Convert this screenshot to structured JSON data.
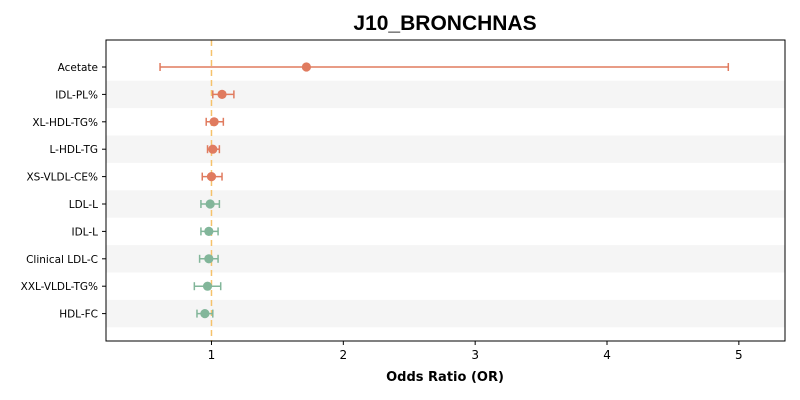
{
  "chart_data": {
    "type": "forest",
    "title": "J10_BRONCHNAS",
    "xlabel": "Odds Ratio (OR)",
    "xlim": [
      0.2,
      5.35
    ],
    "xticks": [
      1,
      2,
      3,
      4,
      5
    ],
    "reference_line": 1,
    "grid": false,
    "colors": {
      "positive": "#E07B5F",
      "negative": "#82B69A",
      "reference": "#F5C26B",
      "band": "#F5F5F5"
    },
    "rows": [
      {
        "label": "Acetate",
        "or": 1.72,
        "lower": 0.61,
        "upper": 4.92,
        "direction": "positive"
      },
      {
        "label": "IDL-PL%",
        "or": 1.08,
        "lower": 1.01,
        "upper": 1.17,
        "direction": "positive"
      },
      {
        "label": "XL-HDL-TG%",
        "or": 1.02,
        "lower": 0.96,
        "upper": 1.09,
        "direction": "positive"
      },
      {
        "label": "L-HDL-TG",
        "or": 1.01,
        "lower": 0.97,
        "upper": 1.06,
        "direction": "positive"
      },
      {
        "label": "XS-VLDL-CE%",
        "or": 1.0,
        "lower": 0.93,
        "upper": 1.08,
        "direction": "positive"
      },
      {
        "label": "LDL-L",
        "or": 0.99,
        "lower": 0.92,
        "upper": 1.06,
        "direction": "negative"
      },
      {
        "label": "IDL-L",
        "or": 0.98,
        "lower": 0.92,
        "upper": 1.05,
        "direction": "negative"
      },
      {
        "label": "Clinical LDL-C",
        "or": 0.98,
        "lower": 0.91,
        "upper": 1.05,
        "direction": "negative"
      },
      {
        "label": "XXL-VLDL-TG%",
        "or": 0.97,
        "lower": 0.87,
        "upper": 1.07,
        "direction": "negative"
      },
      {
        "label": "HDL-FC",
        "or": 0.95,
        "lower": 0.89,
        "upper": 1.01,
        "direction": "negative"
      }
    ]
  }
}
